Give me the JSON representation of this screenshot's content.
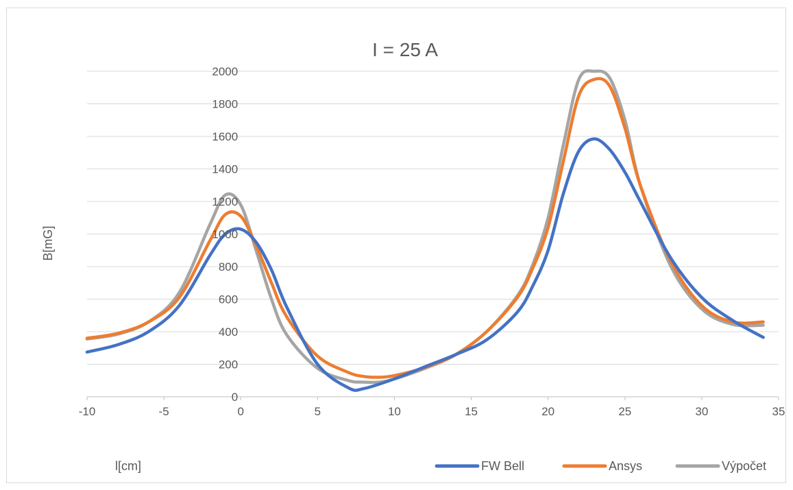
{
  "chart_data": {
    "type": "line",
    "title": "I = 25 A",
    "xlabel": "l[cm]",
    "ylabel": "B[mG]",
    "xlim": [
      -10,
      35
    ],
    "ylim": [
      0,
      2000
    ],
    "x_ticks": [
      -10,
      -5,
      0,
      5,
      10,
      15,
      20,
      25,
      30,
      35
    ],
    "y_ticks": [
      0,
      200,
      400,
      600,
      800,
      1000,
      1200,
      1400,
      1600,
      1800,
      2000
    ],
    "grid": true,
    "legend_position": "bottom-right",
    "series": [
      {
        "name": "FW Bell",
        "color": "#4472C4",
        "x": [
          -10,
          -8,
          -6,
          -4,
          -2,
          -1,
          0,
          1,
          2,
          3,
          5,
          7,
          8,
          10,
          12,
          14,
          16,
          18,
          19,
          20,
          21,
          22,
          23,
          24,
          25,
          26,
          28,
          30,
          32,
          34
        ],
        "y": [
          275,
          320,
          400,
          560,
          870,
          1000,
          1030,
          950,
          780,
          550,
          200,
          55,
          50,
          110,
          185,
          260,
          350,
          520,
          680,
          900,
          1250,
          1510,
          1585,
          1520,
          1380,
          1200,
          850,
          610,
          470,
          365
        ]
      },
      {
        "name": "Ansys",
        "color": "#ED7D31",
        "x": [
          -10,
          -8,
          -6,
          -4,
          -2,
          -1,
          0,
          1,
          2,
          3,
          5,
          7,
          8,
          9,
          10,
          12,
          14,
          16,
          18,
          19,
          20,
          21,
          22,
          23,
          24,
          25,
          26,
          28,
          30,
          32,
          34
        ],
        "y": [
          360,
          390,
          460,
          610,
          960,
          1120,
          1110,
          930,
          700,
          490,
          250,
          150,
          125,
          120,
          130,
          180,
          260,
          400,
          610,
          790,
          1040,
          1450,
          1850,
          1950,
          1910,
          1650,
          1300,
          830,
          560,
          460,
          460
        ]
      },
      {
        "name": "Výpočet",
        "color": "#A5A5A5",
        "x": [
          -10,
          -8,
          -6,
          -4,
          -2,
          -1,
          0,
          1,
          2,
          3,
          5,
          7,
          8,
          9,
          10,
          12,
          14,
          16,
          18,
          19,
          20,
          21,
          22,
          23,
          24,
          25,
          26,
          28,
          30,
          32,
          34
        ],
        "y": [
          355,
          385,
          460,
          640,
          1060,
          1240,
          1180,
          900,
          600,
          380,
          175,
          100,
          90,
          90,
          110,
          175,
          260,
          400,
          620,
          810,
          1100,
          1550,
          1950,
          2000,
          1960,
          1700,
          1300,
          800,
          540,
          445,
          440
        ]
      }
    ]
  }
}
